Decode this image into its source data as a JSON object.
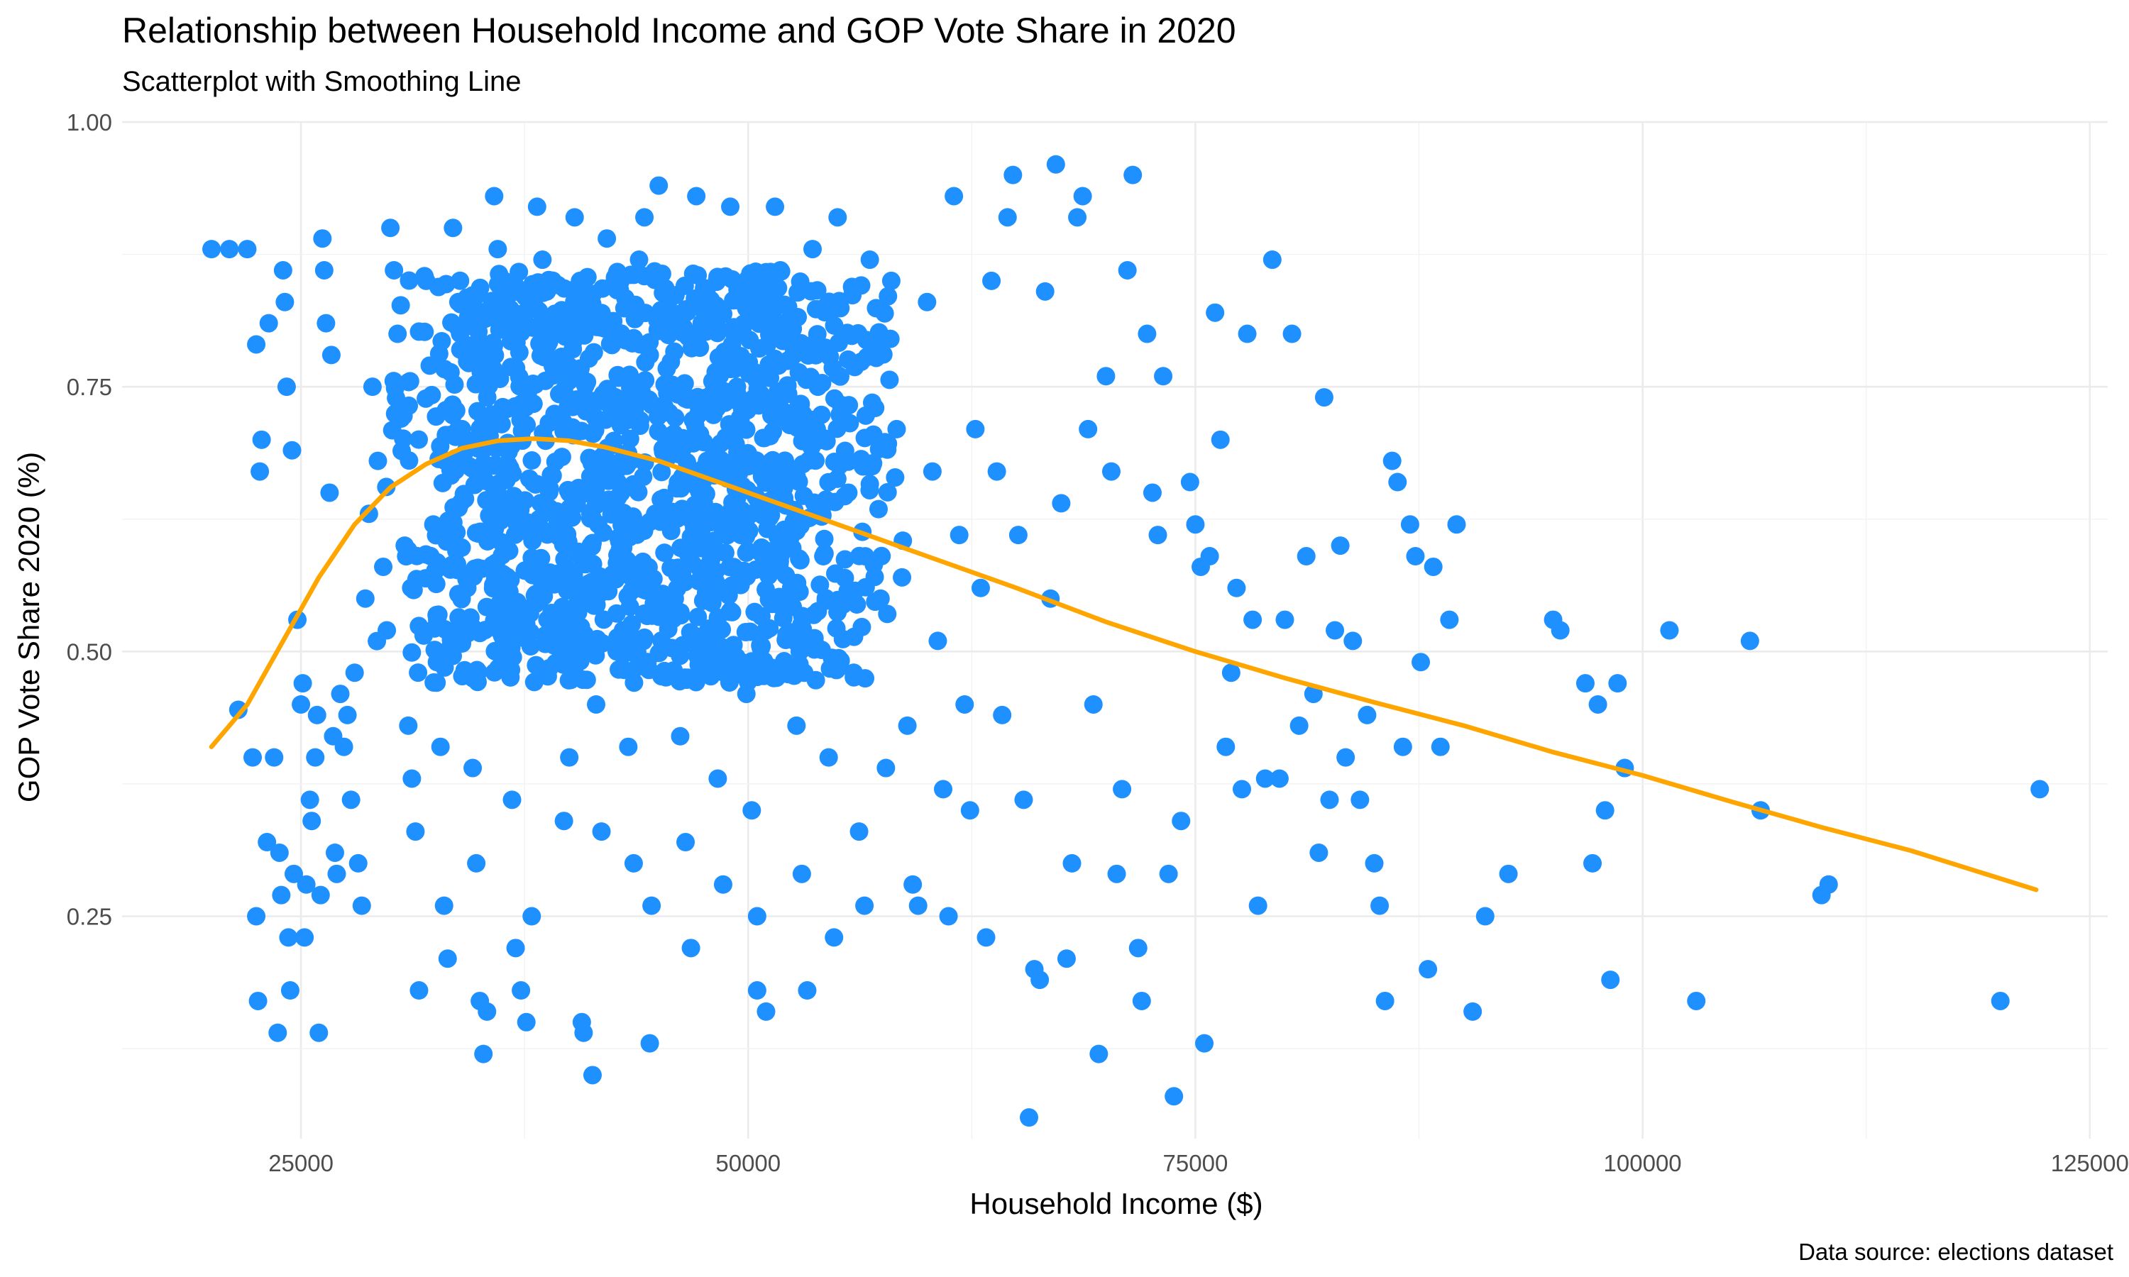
{
  "chart_data": {
    "type": "scatter",
    "title": "Relationship between Household Income and GOP Vote Share in 2020",
    "subtitle": "Scatterplot with Smoothing Line",
    "xlabel": "Household Income ($)",
    "ylabel": "GOP Vote Share 2020 (%)",
    "caption": "Data source: elections dataset",
    "xlim": [
      15000,
      126000
    ],
    "ylim": [
      0.04,
      1.0
    ],
    "x_ticks": [
      25000,
      50000,
      75000,
      100000,
      125000
    ],
    "x_tick_labels": [
      "25000",
      "50000",
      "75000",
      "100000",
      "125000"
    ],
    "y_ticks": [
      0.25,
      0.5,
      0.75,
      1.0
    ],
    "y_tick_labels": [
      "0.25",
      "0.50",
      "0.75",
      "1.00"
    ],
    "grid": true,
    "legend": "none",
    "colors": {
      "points": "#1E90FF",
      "smooth": "#FFA500"
    },
    "points": [
      [
        20000,
        0.88
      ],
      [
        21000,
        0.88
      ],
      [
        22000,
        0.88
      ],
      [
        21500,
        0.445
      ],
      [
        22500,
        0.79
      ],
      [
        23200,
        0.81
      ],
      [
        22800,
        0.7
      ],
      [
        22700,
        0.67
      ],
      [
        22300,
        0.4
      ],
      [
        22500,
        0.25
      ],
      [
        22600,
        0.17
      ],
      [
        23100,
        0.32
      ],
      [
        23500,
        0.4
      ],
      [
        24000,
        0.86
      ],
      [
        24100,
        0.83
      ],
      [
        24200,
        0.75
      ],
      [
        24500,
        0.69
      ],
      [
        24800,
        0.53
      ],
      [
        23800,
        0.31
      ],
      [
        23900,
        0.27
      ],
      [
        23700,
        0.14
      ],
      [
        24300,
        0.23
      ],
      [
        24400,
        0.18
      ],
      [
        24600,
        0.29
      ],
      [
        25000,
        0.45
      ],
      [
        25100,
        0.47
      ],
      [
        25300,
        0.28
      ],
      [
        25200,
        0.23
      ],
      [
        25500,
        0.36
      ],
      [
        25600,
        0.34
      ],
      [
        25800,
        0.4
      ],
      [
        25900,
        0.44
      ],
      [
        26000,
        0.14
      ],
      [
        26100,
        0.27
      ],
      [
        26200,
        0.89
      ],
      [
        26300,
        0.86
      ],
      [
        26400,
        0.81
      ],
      [
        26600,
        0.65
      ],
      [
        26700,
        0.78
      ],
      [
        26800,
        0.42
      ],
      [
        26900,
        0.31
      ],
      [
        27000,
        0.29
      ],
      [
        27200,
        0.46
      ],
      [
        27400,
        0.41
      ],
      [
        27600,
        0.44
      ],
      [
        27800,
        0.36
      ],
      [
        28000,
        0.48
      ],
      [
        28200,
        0.3
      ],
      [
        28400,
        0.26
      ],
      [
        28600,
        0.55
      ],
      [
        28800,
        0.63
      ],
      [
        29000,
        0.75
      ],
      [
        29300,
        0.68
      ],
      [
        29600,
        0.58
      ],
      [
        29800,
        0.52
      ],
      [
        30000,
        0.9
      ],
      [
        30200,
        0.86
      ],
      [
        30400,
        0.8
      ],
      [
        30600,
        0.72
      ],
      [
        30800,
        0.6
      ],
      [
        31000,
        0.43
      ],
      [
        31200,
        0.38
      ],
      [
        31400,
        0.33
      ],
      [
        31600,
        0.18
      ],
      [
        32000,
        0.85
      ],
      [
        32200,
        0.77
      ],
      [
        32400,
        0.62
      ],
      [
        32600,
        0.49
      ],
      [
        32800,
        0.41
      ],
      [
        33000,
        0.26
      ],
      [
        33200,
        0.21
      ],
      [
        33500,
        0.9
      ],
      [
        33800,
        0.83
      ],
      [
        34000,
        0.71
      ],
      [
        34300,
        0.56
      ],
      [
        34600,
        0.39
      ],
      [
        34800,
        0.3
      ],
      [
        35000,
        0.17
      ],
      [
        35200,
        0.12
      ],
      [
        35400,
        0.16
      ],
      [
        35800,
        0.93
      ],
      [
        36000,
        0.88
      ],
      [
        36200,
        0.82
      ],
      [
        36400,
        0.67
      ],
      [
        36600,
        0.53
      ],
      [
        36800,
        0.36
      ],
      [
        37000,
        0.22
      ],
      [
        37300,
        0.18
      ],
      [
        37600,
        0.15
      ],
      [
        37900,
        0.25
      ],
      [
        38200,
        0.92
      ],
      [
        38500,
        0.87
      ],
      [
        38800,
        0.79
      ],
      [
        39100,
        0.63
      ],
      [
        39400,
        0.49
      ],
      [
        39700,
        0.34
      ],
      [
        40000,
        0.4
      ],
      [
        40300,
        0.91
      ],
      [
        40600,
        0.85
      ],
      [
        40900,
        0.74
      ],
      [
        41200,
        0.6
      ],
      [
        41500,
        0.45
      ],
      [
        41800,
        0.33
      ],
      [
        41300,
        0.1
      ],
      [
        40700,
        0.15
      ],
      [
        40800,
        0.14
      ],
      [
        42100,
        0.89
      ],
      [
        42400,
        0.8
      ],
      [
        42700,
        0.66
      ],
      [
        43000,
        0.52
      ],
      [
        43300,
        0.41
      ],
      [
        43600,
        0.3
      ],
      [
        43900,
        0.87
      ],
      [
        44200,
        0.91
      ],
      [
        44500,
        0.78
      ],
      [
        44800,
        0.63
      ],
      [
        44600,
        0.26
      ],
      [
        44500,
        0.13
      ],
      [
        45000,
        0.94
      ],
      [
        45300,
        0.84
      ],
      [
        45600,
        0.7
      ],
      [
        45900,
        0.55
      ],
      [
        46200,
        0.42
      ],
      [
        46500,
        0.32
      ],
      [
        46800,
        0.22
      ],
      [
        47100,
        0.93
      ],
      [
        47400,
        0.81
      ],
      [
        47700,
        0.68
      ],
      [
        48000,
        0.51
      ],
      [
        48300,
        0.38
      ],
      [
        48600,
        0.28
      ],
      [
        49000,
        0.92
      ],
      [
        49300,
        0.78
      ],
      [
        49600,
        0.61
      ],
      [
        49900,
        0.46
      ],
      [
        50200,
        0.35
      ],
      [
        50500,
        0.25
      ],
      [
        50500,
        0.18
      ],
      [
        51000,
        0.16
      ],
      [
        51500,
        0.92
      ],
      [
        51800,
        0.86
      ],
      [
        52100,
        0.72
      ],
      [
        52400,
        0.56
      ],
      [
        52700,
        0.43
      ],
      [
        53000,
        0.29
      ],
      [
        53300,
        0.18
      ],
      [
        53600,
        0.88
      ],
      [
        53900,
        0.75
      ],
      [
        54200,
        0.59
      ],
      [
        54500,
        0.4
      ],
      [
        54800,
        0.23
      ],
      [
        55000,
        0.91
      ],
      [
        55300,
        0.8
      ],
      [
        55600,
        0.65
      ],
      [
        55900,
        0.48
      ],
      [
        56200,
        0.33
      ],
      [
        56500,
        0.26
      ],
      [
        56800,
        0.87
      ],
      [
        57100,
        0.73
      ],
      [
        57400,
        0.55
      ],
      [
        57700,
        0.39
      ],
      [
        58000,
        0.85
      ],
      [
        58300,
        0.71
      ],
      [
        58600,
        0.57
      ],
      [
        58900,
        0.43
      ],
      [
        59200,
        0.28
      ],
      [
        59500,
        0.26
      ],
      [
        60000,
        0.83
      ],
      [
        60300,
        0.67
      ],
      [
        60600,
        0.51
      ],
      [
        60900,
        0.37
      ],
      [
        61200,
        0.25
      ],
      [
        61500,
        0.93
      ],
      [
        61800,
        0.61
      ],
      [
        62100,
        0.45
      ],
      [
        62400,
        0.35
      ],
      [
        62700,
        0.71
      ],
      [
        63000,
        0.56
      ],
      [
        63300,
        0.23
      ],
      [
        63600,
        0.85
      ],
      [
        63900,
        0.67
      ],
      [
        64200,
        0.44
      ],
      [
        64500,
        0.91
      ],
      [
        64800,
        0.95
      ],
      [
        65100,
        0.61
      ],
      [
        65400,
        0.36
      ],
      [
        65700,
        0.06
      ],
      [
        66000,
        0.2
      ],
      [
        66300,
        0.19
      ],
      [
        66600,
        0.84
      ],
      [
        66900,
        0.55
      ],
      [
        67200,
        0.96
      ],
      [
        67500,
        0.64
      ],
      [
        67800,
        0.21
      ],
      [
        68100,
        0.3
      ],
      [
        68400,
        0.91
      ],
      [
        68700,
        0.93
      ],
      [
        69000,
        0.71
      ],
      [
        69300,
        0.45
      ],
      [
        69600,
        0.12
      ],
      [
        70000,
        0.76
      ],
      [
        70300,
        0.67
      ],
      [
        70600,
        0.29
      ],
      [
        70900,
        0.37
      ],
      [
        71200,
        0.86
      ],
      [
        71500,
        0.95
      ],
      [
        71800,
        0.22
      ],
      [
        72000,
        0.17
      ],
      [
        72300,
        0.8
      ],
      [
        72600,
        0.65
      ],
      [
        72900,
        0.61
      ],
      [
        73200,
        0.76
      ],
      [
        73500,
        0.29
      ],
      [
        73800,
        0.08
      ],
      [
        74200,
        0.34
      ],
      [
        74700,
        0.66
      ],
      [
        75000,
        0.62
      ],
      [
        75300,
        0.58
      ],
      [
        75500,
        0.13
      ],
      [
        75800,
        0.59
      ],
      [
        76100,
        0.82
      ],
      [
        76400,
        0.7
      ],
      [
        76700,
        0.41
      ],
      [
        77000,
        0.48
      ],
      [
        77300,
        0.56
      ],
      [
        77600,
        0.37
      ],
      [
        77900,
        0.8
      ],
      [
        78200,
        0.53
      ],
      [
        78500,
        0.26
      ],
      [
        78900,
        0.38
      ],
      [
        79300,
        0.87
      ],
      [
        79700,
        0.38
      ],
      [
        80000,
        0.53
      ],
      [
        80400,
        0.8
      ],
      [
        80800,
        0.43
      ],
      [
        81200,
        0.59
      ],
      [
        81600,
        0.46
      ],
      [
        81900,
        0.31
      ],
      [
        82200,
        0.74
      ],
      [
        82500,
        0.36
      ],
      [
        82800,
        0.52
      ],
      [
        83100,
        0.6
      ],
      [
        83400,
        0.4
      ],
      [
        83800,
        0.51
      ],
      [
        84200,
        0.36
      ],
      [
        84600,
        0.44
      ],
      [
        85000,
        0.3
      ],
      [
        85300,
        0.26
      ],
      [
        85600,
        0.17
      ],
      [
        86000,
        0.68
      ],
      [
        86300,
        0.66
      ],
      [
        86600,
        0.41
      ],
      [
        87000,
        0.62
      ],
      [
        87300,
        0.59
      ],
      [
        87600,
        0.49
      ],
      [
        88000,
        0.2
      ],
      [
        88300,
        0.58
      ],
      [
        88700,
        0.41
      ],
      [
        89200,
        0.53
      ],
      [
        89600,
        0.62
      ],
      [
        90500,
        0.16
      ],
      [
        91200,
        0.25
      ],
      [
        92500,
        0.29
      ],
      [
        95000,
        0.53
      ],
      [
        95400,
        0.52
      ],
      [
        96800,
        0.47
      ],
      [
        97200,
        0.3
      ],
      [
        97500,
        0.45
      ],
      [
        97900,
        0.35
      ],
      [
        98200,
        0.19
      ],
      [
        98600,
        0.47
      ],
      [
        99000,
        0.39
      ],
      [
        101500,
        0.52
      ],
      [
        103000,
        0.17
      ],
      [
        106000,
        0.51
      ],
      [
        106600,
        0.35
      ],
      [
        110000,
        0.27
      ],
      [
        110400,
        0.28
      ],
      [
        120000,
        0.17
      ],
      [
        122200,
        0.37
      ]
    ],
    "dense_cluster": {
      "x_range": [
        29000,
        59000
      ],
      "y_range": [
        0.47,
        0.86
      ],
      "center": [
        42000,
        0.7
      ],
      "count": 1400
    },
    "smooth": {
      "x": [
        20000,
        22000,
        24000,
        26000,
        28000,
        30000,
        32000,
        34000,
        36000,
        38000,
        40000,
        42000,
        45000,
        50000,
        55000,
        60000,
        65000,
        70000,
        75000,
        80000,
        85000,
        90000,
        95000,
        100000,
        105000,
        110000,
        115000,
        122000
      ],
      "y": [
        0.41,
        0.45,
        0.51,
        0.57,
        0.62,
        0.655,
        0.677,
        0.692,
        0.699,
        0.701,
        0.699,
        0.693,
        0.68,
        0.65,
        0.62,
        0.59,
        0.56,
        0.528,
        0.5,
        0.475,
        0.452,
        0.43,
        0.405,
        0.383,
        0.358,
        0.334,
        0.312,
        0.275
      ]
    }
  }
}
